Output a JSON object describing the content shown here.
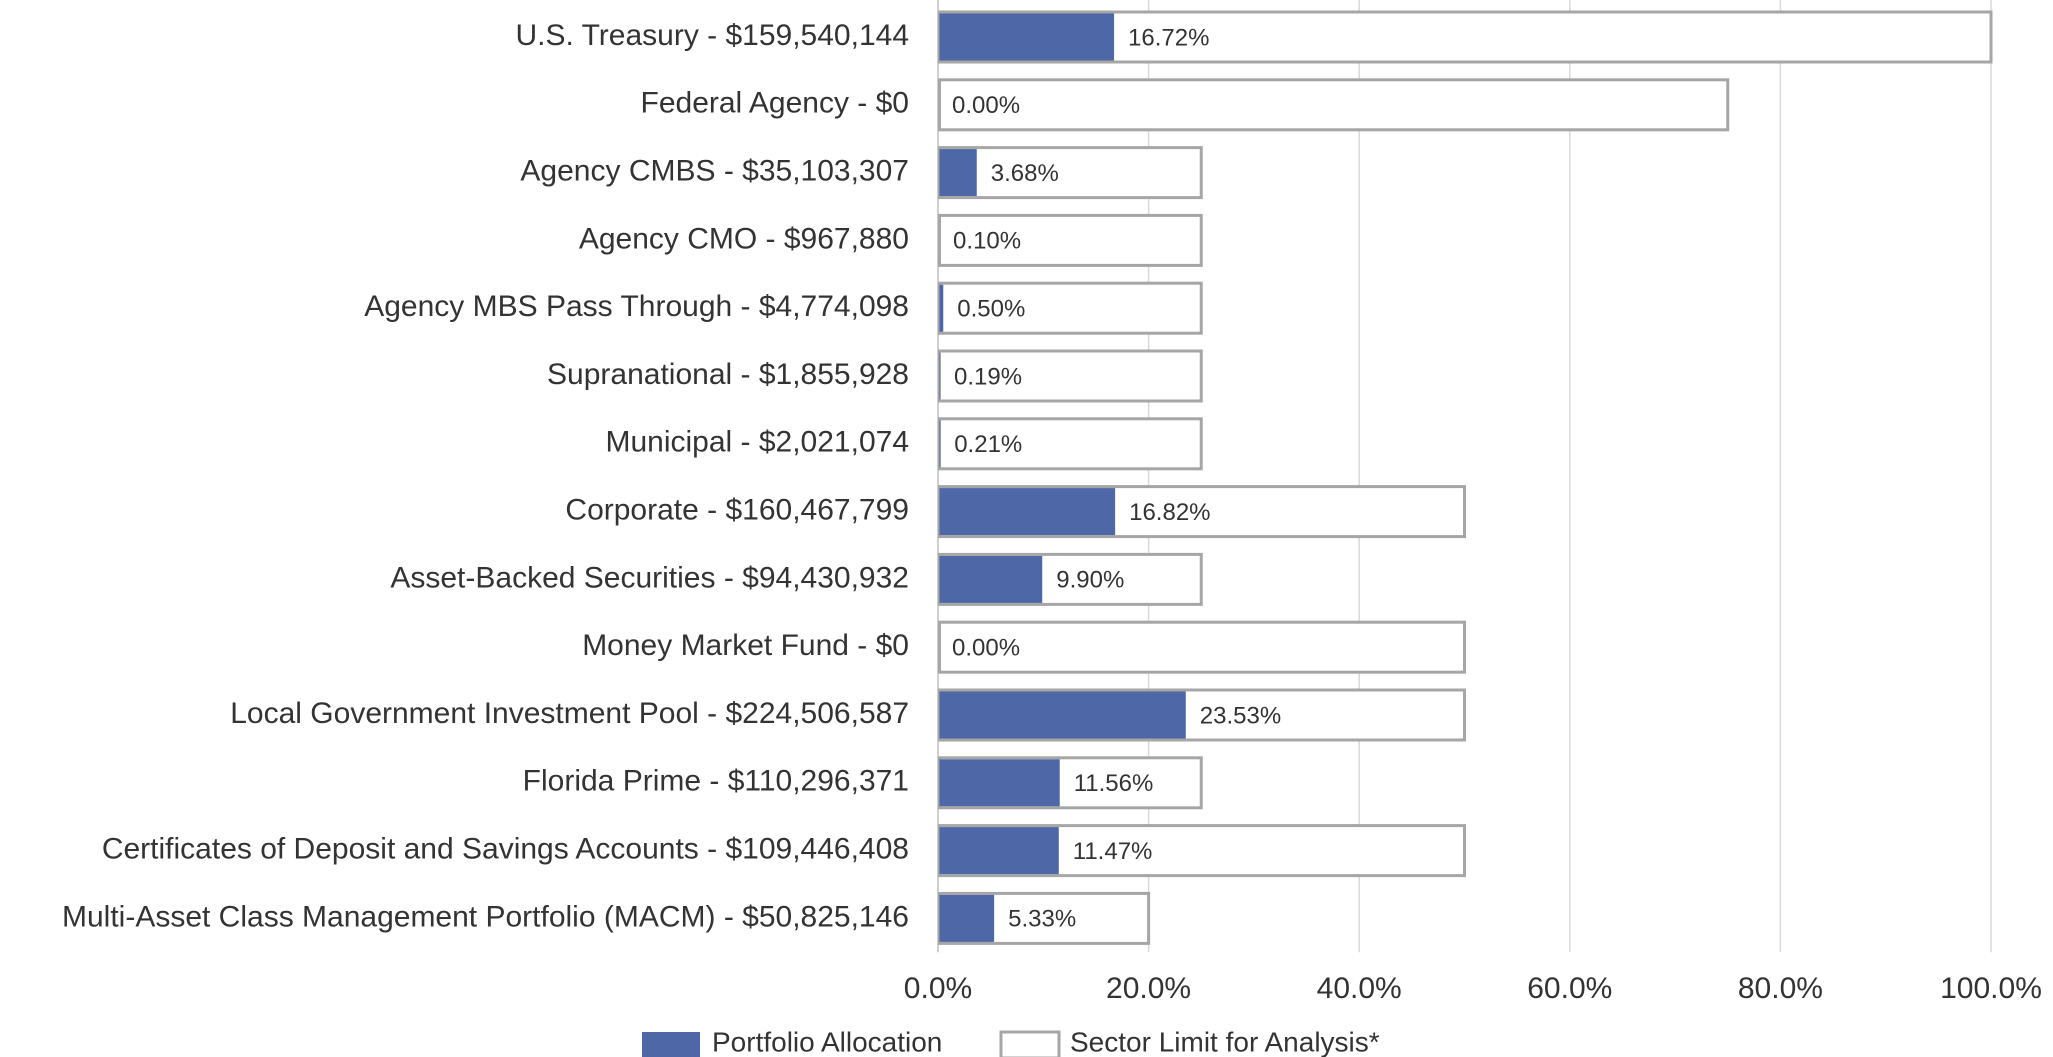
{
  "chart_data": {
    "type": "bar",
    "orientation": "horizontal",
    "categories": [
      "U.S. Treasury - $159,540,144",
      "Federal Agency - $0",
      "Agency CMBS - $35,103,307",
      "Agency CMO - $967,880",
      "Agency MBS Pass Through - $4,774,098",
      "Supranational - $1,855,928",
      "Municipal - $2,021,074",
      "Corporate - $160,467,799",
      "Asset-Backed Securities - $94,430,932",
      "Money Market Fund - $0",
      "Local Government Investment Pool - $224,506,587",
      "Florida Prime - $110,296,371",
      "Certificates of Deposit and Savings Accounts - $109,446,408",
      "Multi-Asset Class Management Portfolio (MACM) - $50,825,146"
    ],
    "series": [
      {
        "name": "Portfolio Allocation",
        "color": "#4e67a6",
        "values": [
          16.72,
          0,
          3.68,
          0.1,
          0.5,
          0.19,
          0.21,
          16.82,
          9.9,
          0,
          23.53,
          11.56,
          11.47,
          5.33
        ],
        "value_labels": [
          "16.72%",
          "0.00%",
          "3.68%",
          "0.10%",
          "0.50%",
          "0.19%",
          "0.21%",
          "16.82%",
          "9.90%",
          "0.00%",
          "23.53%",
          "11.56%",
          "11.47%",
          "5.33%"
        ]
      },
      {
        "name": "Sector Limit for Analysis*",
        "color": "#a6a6a6",
        "values": [
          100,
          75,
          25,
          25,
          25,
          25,
          25,
          50,
          25,
          50,
          50,
          25,
          50,
          20
        ]
      }
    ],
    "xlim": [
      0,
      100
    ],
    "xticks": [
      {
        "value": 0,
        "label": "0.0%"
      },
      {
        "value": 20,
        "label": "20.0%"
      },
      {
        "value": 40,
        "label": "40.0%"
      },
      {
        "value": 60,
        "label": "60.0%"
      },
      {
        "value": 80,
        "label": "80.0%"
      },
      {
        "value": 100,
        "label": "100.0%"
      }
    ],
    "grid": true,
    "legend": "bottom"
  }
}
